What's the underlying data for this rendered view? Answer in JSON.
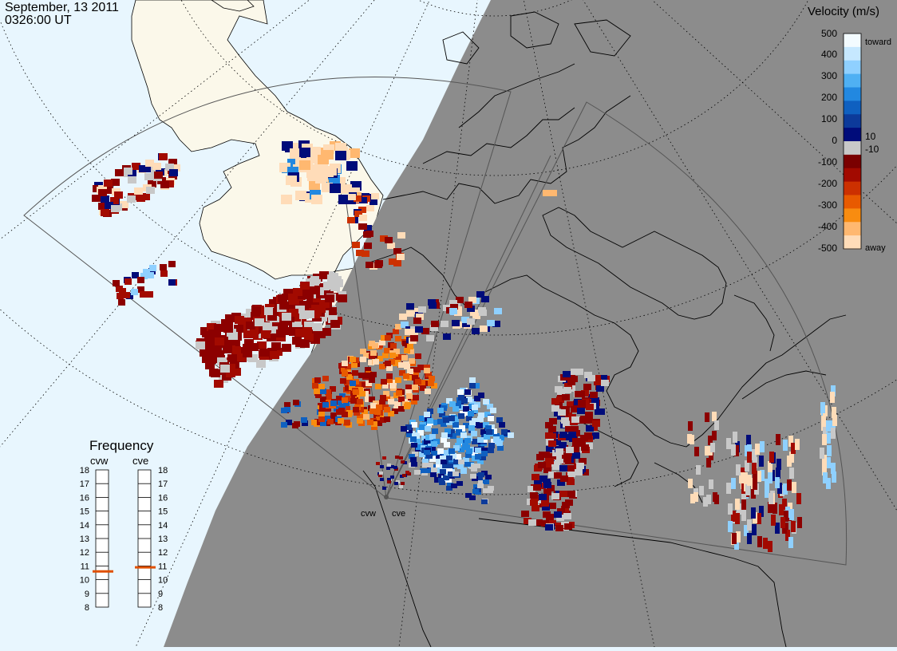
{
  "header": {
    "date": "September, 13 2011",
    "time": "0326:00 UT"
  },
  "velocity_scale": {
    "title": "Velocity (m/s)",
    "ticks": [
      "500",
      "400",
      "300",
      "200",
      "100",
      "10",
      "0",
      "-10",
      "-100",
      "-200",
      "-300",
      "-400",
      "-500"
    ],
    "toward_label": "toward",
    "away_label": "away",
    "colors": [
      "#f3fbff",
      "#c6e8ff",
      "#8fd0ff",
      "#4fb0f3",
      "#2288e0",
      "#0f60c0",
      "#0c3a9a",
      "#000c7a",
      "#c8c8c8",
      "#7a0000",
      "#a20a00",
      "#cc3000",
      "#e85a00",
      "#f88c10",
      "#ffb870",
      "#ffdcb8"
    ]
  },
  "radars": {
    "west_label": "cvw",
    "east_label": "cve"
  },
  "frequency": {
    "title": "Frequency",
    "cvw_label": "cvw",
    "cve_label": "cve",
    "left_ticks": [
      "18",
      "17",
      "16",
      "15",
      "14",
      "13",
      "12",
      "11",
      "10",
      "9",
      "8"
    ],
    "right_ticks": [
      "18",
      "17",
      "16",
      "15",
      "14",
      "13",
      "12",
      "11",
      "10",
      "9",
      "8"
    ],
    "cvw_mhz": 10.6,
    "cve_mhz": 10.9,
    "marker_color": "#e05000"
  },
  "map_colors": {
    "ocean": "#e8f6fe",
    "land": "#fbf8ea",
    "night": "#8c8c8c",
    "coast": "#000000"
  }
}
